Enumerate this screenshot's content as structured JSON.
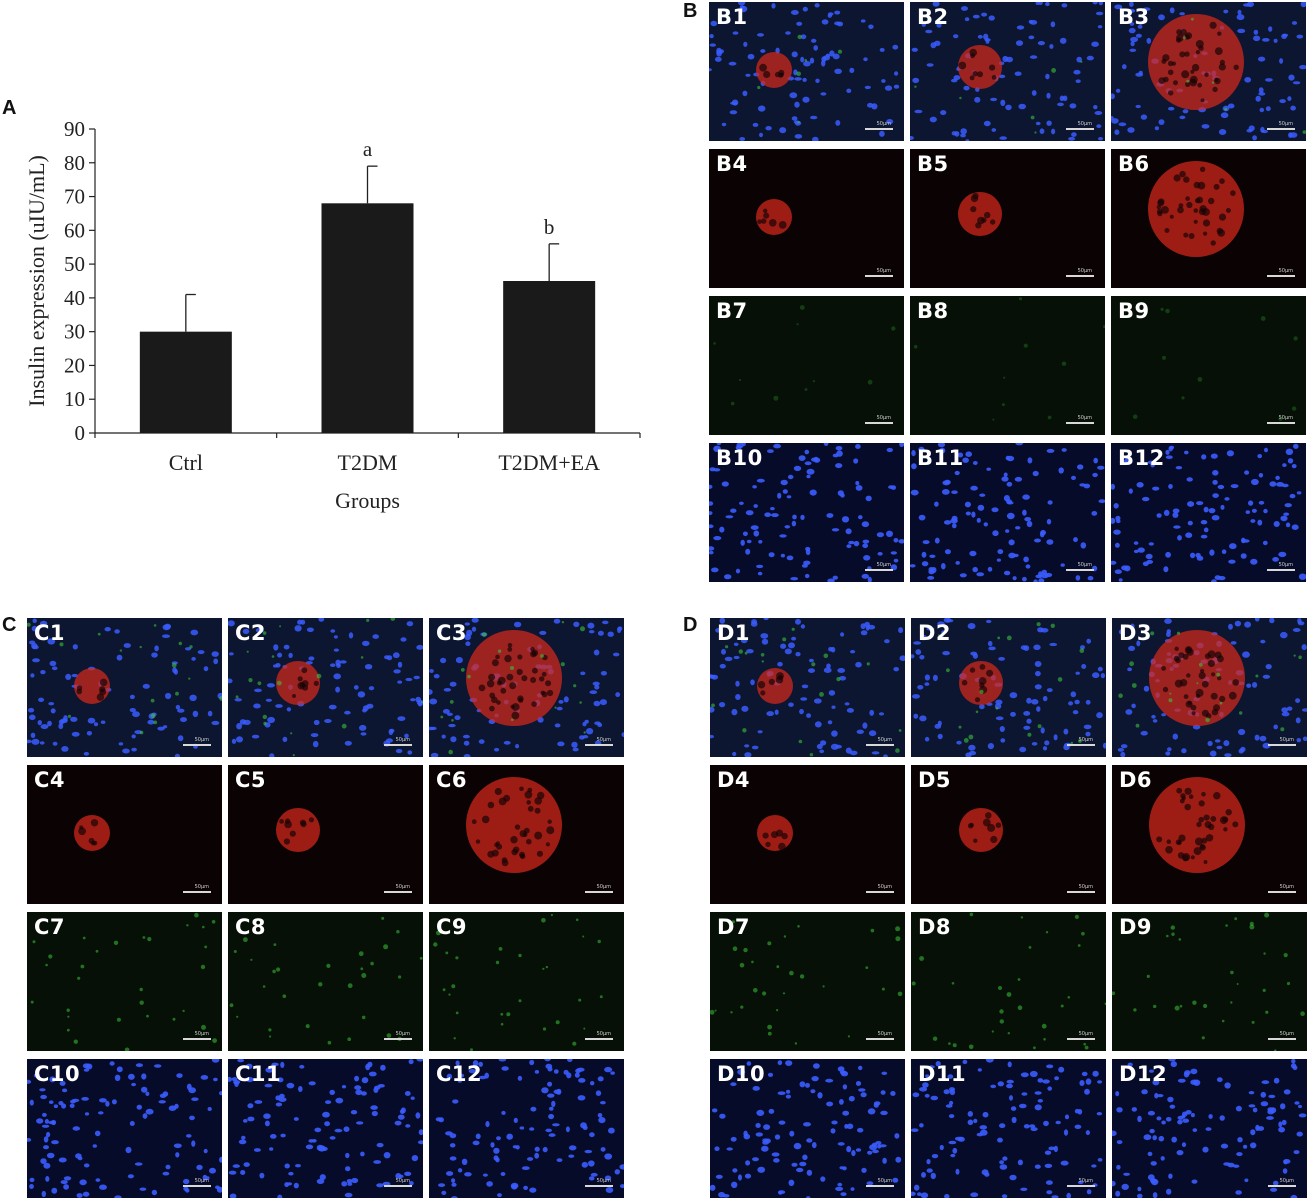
{
  "panel_labels": {
    "A": "A",
    "B": "B",
    "C": "C",
    "D": "D"
  },
  "chart_data": {
    "type": "bar",
    "categories": [
      "Ctrl",
      "T2DM",
      "T2DM+EA"
    ],
    "values": [
      30,
      68,
      45
    ],
    "errors": [
      11,
      11,
      11
    ],
    "significance": [
      "",
      "a",
      "b"
    ],
    "xlabel": "Groups",
    "ylabel": "Insulin expression (uIU/mL)",
    "ylim": [
      0,
      90
    ],
    "yticks": [
      0,
      10,
      20,
      30,
      40,
      50,
      60,
      70,
      80,
      90
    ],
    "bar_color": "#1a1a1a",
    "grid": false
  },
  "micrographs": {
    "scale_label": "50μm",
    "groups": [
      {
        "id": "B",
        "labels": [
          "B1",
          "B2",
          "B3",
          "B4",
          "B5",
          "B6",
          "B7",
          "B8",
          "B9",
          "B10",
          "B11",
          "B12"
        ]
      },
      {
        "id": "C",
        "labels": [
          "C1",
          "C2",
          "C3",
          "C4",
          "C5",
          "C6",
          "C7",
          "C8",
          "C9",
          "C10",
          "C11",
          "C12"
        ]
      },
      {
        "id": "D",
        "labels": [
          "D1",
          "D2",
          "D3",
          "D4",
          "D5",
          "D6",
          "D7",
          "D8",
          "D9",
          "D10",
          "D11",
          "D12"
        ]
      }
    ],
    "row_channels": [
      "merge",
      "insulin-red",
      "green",
      "dapi-blue"
    ],
    "channel_colors": {
      "merge": "#0c1630",
      "insulin-red": "#0b0303",
      "green": "#061006",
      "dapi-blue": "#070b2a"
    }
  }
}
